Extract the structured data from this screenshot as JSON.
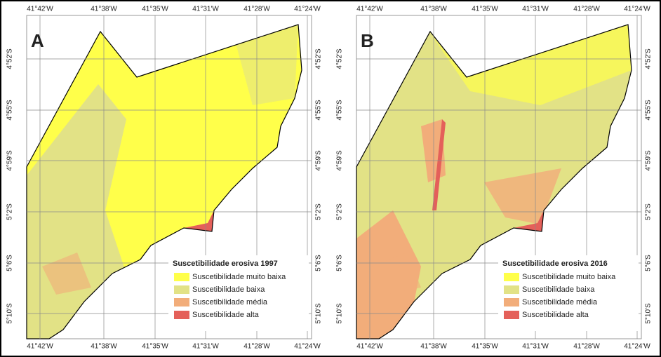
{
  "panels": [
    {
      "label": "A",
      "legend_title": "Suscetibilidade erosiva 1997",
      "legend_items": [
        "Suscetibilidade muito baixa",
        "Suscetibilidade baixa",
        "Suscetibilidade média",
        "Suscetibilidade alta"
      ]
    },
    {
      "label": "B",
      "legend_title": "Suscetibilidade erosiva 2016",
      "legend_items": [
        "Suscetibilidade muito baixa",
        "Suscetibilidade baixa",
        "Suscetibilidade média",
        "Suscetibilidade alta"
      ]
    }
  ],
  "lon_labels": [
    "41°42'W",
    "41°38'W",
    "41°35'W",
    "41°31'W",
    "41°28'W",
    "41°24'W"
  ],
  "lat_labels": [
    "4°52'S",
    "4°55'S",
    "4°59'S",
    "5°2'S",
    "5°6'S",
    "5°10'S"
  ]
}
